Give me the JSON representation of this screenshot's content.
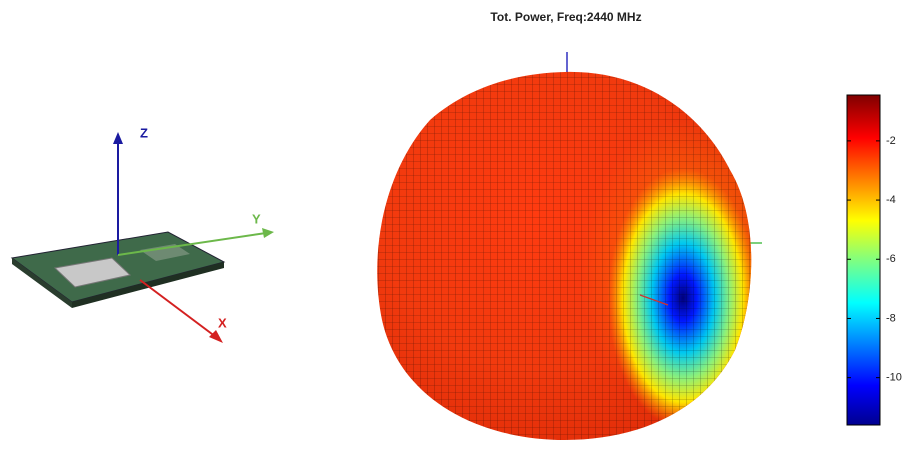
{
  "title": "Tot. Power, Freq:2440 MHz",
  "axis_labels": {
    "z": "Z",
    "y": "Y",
    "x": "X"
  },
  "colorbar": {
    "lim": [
      -11.6,
      -0.45
    ],
    "ticks": [
      -2,
      -4,
      -6,
      -8,
      -10
    ]
  }
}
